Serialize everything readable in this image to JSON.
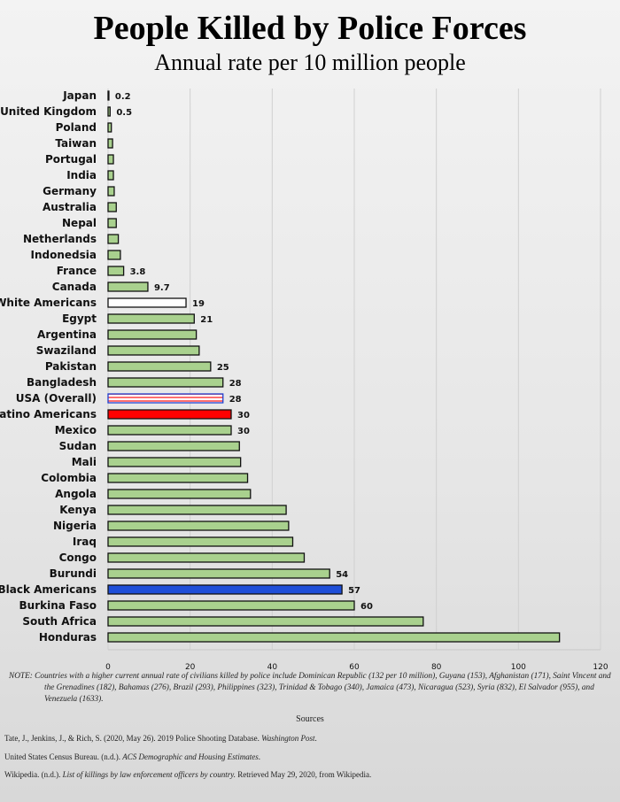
{
  "chart_data": {
    "type": "bar",
    "orientation": "horizontal",
    "title": "People Killed by Police Forces",
    "subtitle": "Annual rate per 10 million people",
    "xlim": [
      0,
      120
    ],
    "xticks": [
      0,
      20,
      40,
      60,
      80,
      100,
      120
    ],
    "grid": "vertical",
    "categories": [
      "Japan",
      "United Kingdom",
      "Poland",
      "Taiwan",
      "Portugal",
      "India",
      "Germany",
      "Australia",
      "Nepal",
      "Netherlands",
      "Indonedsia",
      "France",
      "Canada",
      "White Americans",
      "Egypt",
      "Argentina",
      "Swaziland",
      "Pakistan",
      "Bangladesh",
      "USA (Overall)",
      "Latino Americans",
      "Mexico",
      "Sudan",
      "Mali",
      "Colombia",
      "Angola",
      "Kenya",
      "Nigeria",
      "Iraq",
      "Congo",
      "Burundi",
      "Black Americans",
      "Burkina Faso",
      "South Africa",
      "Honduras"
    ],
    "values": [
      0.2,
      0.5,
      0.8,
      1.1,
      1.3,
      1.3,
      1.5,
      2,
      2,
      2.5,
      3,
      3.8,
      9.7,
      19,
      21,
      21.5,
      22.2,
      25,
      28,
      28,
      30,
      30,
      32,
      32.3,
      34,
      34.7,
      43.4,
      44,
      45,
      47.8,
      54,
      57,
      60,
      76.8,
      110
    ],
    "data_labels": [
      "0.2",
      "0.5",
      "",
      "",
      "",
      "",
      "",
      "",
      "",
      "",
      "",
      "3.8",
      "9.7",
      "19",
      "21",
      "",
      "",
      "25",
      "28",
      "28",
      "30",
      "30",
      "",
      "",
      "",
      "",
      "",
      "",
      "",
      "",
      "54",
      "57",
      "60",
      "",
      ""
    ],
    "styles": {
      "default": "#a9d18e",
      "White Americans": "#ffffff",
      "USA (Overall)": "flag",
      "Latino Americans": "#ff0000",
      "Black Americans": "#1f4fd8"
    }
  },
  "note": "NOTE: Countries with a higher current annual rate of civilians killed by police include Dominican Republic (132 per 10 million), Guyana (153), Afghanistan (171), Saint Vincent and the Grenadines (182), Bahamas (276), Brazil (293), Philippines (323), Trinidad & Tobago (340), Jamaica (473), Nicaragua (523), Syria (832), El Salvador (955), and Venezuela (1633).",
  "sources": {
    "heading": "Sources",
    "items": [
      {
        "plain": "Tate, J., Jenkins, J., & Rich, S. (2020, May 26). 2019 Police Shooting Database. ",
        "italic": "Washington Post",
        "after": "."
      },
      {
        "plain": "United States Census Bureau. (n.d.). ",
        "italic": "ACS Demographic and Housing Estimates",
        "after": "."
      },
      {
        "plain": "Wikipedia. (n.d.). ",
        "italic": "List of killings by law enforcement officers by country.",
        "after": " Retrieved May 29, 2020, from Wikipedia."
      }
    ]
  }
}
